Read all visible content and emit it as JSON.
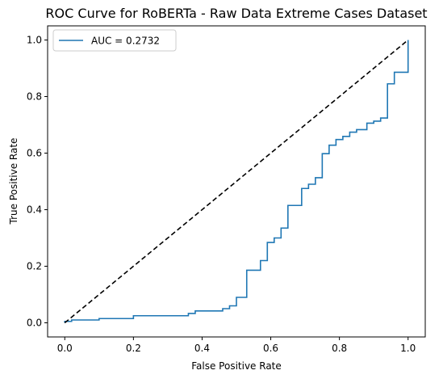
{
  "chart_data": {
    "type": "line",
    "title": "ROC Curve for RoBERTa - Raw Data Extreme Cases Dataset",
    "xlabel": "False Positive Rate",
    "ylabel": "True Positive Rate",
    "xlim": [
      -0.05,
      1.05
    ],
    "ylim": [
      -0.05,
      1.05
    ],
    "xticks": [
      0.0,
      0.2,
      0.4,
      0.6,
      0.8,
      1.0
    ],
    "xtick_labels": [
      "0.0",
      "0.2",
      "0.4",
      "0.6",
      "0.8",
      "1.0"
    ],
    "yticks": [
      0.0,
      0.2,
      0.4,
      0.6,
      0.8,
      1.0
    ],
    "ytick_labels": [
      "0.0",
      "0.2",
      "0.4",
      "0.6",
      "0.8",
      "1.0"
    ],
    "grid": false,
    "legend_position": "top-left",
    "series": [
      {
        "name": "AUC = 0.2732",
        "color": "#1f77b4",
        "style": "solid",
        "step": true,
        "x": [
          0.0,
          0.0,
          0.02,
          0.02,
          0.1,
          0.1,
          0.2,
          0.2,
          0.36,
          0.36,
          0.38,
          0.38,
          0.46,
          0.46,
          0.48,
          0.48,
          0.5,
          0.5,
          0.53,
          0.53,
          0.57,
          0.57,
          0.59,
          0.59,
          0.61,
          0.61,
          0.63,
          0.63,
          0.65,
          0.65,
          0.69,
          0.69,
          0.71,
          0.71,
          0.73,
          0.73,
          0.75,
          0.75,
          0.77,
          0.77,
          0.79,
          0.79,
          0.81,
          0.81,
          0.83,
          0.83,
          0.85,
          0.85,
          0.88,
          0.88,
          0.9,
          0.9,
          0.92,
          0.92,
          0.94,
          0.94,
          0.96,
          0.96,
          1.0,
          1.0
        ],
        "y": [
          0.0,
          0.005,
          0.005,
          0.01,
          0.01,
          0.015,
          0.015,
          0.025,
          0.025,
          0.033,
          0.033,
          0.042,
          0.042,
          0.05,
          0.05,
          0.06,
          0.06,
          0.09,
          0.09,
          0.186,
          0.186,
          0.22,
          0.22,
          0.284,
          0.284,
          0.3,
          0.3,
          0.335,
          0.335,
          0.415,
          0.415,
          0.475,
          0.475,
          0.49,
          0.49,
          0.513,
          0.513,
          0.598,
          0.598,
          0.628,
          0.628,
          0.648,
          0.648,
          0.659,
          0.659,
          0.674,
          0.674,
          0.683,
          0.683,
          0.706,
          0.706,
          0.713,
          0.713,
          0.724,
          0.724,
          0.845,
          0.845,
          0.886,
          0.886,
          1.0
        ]
      },
      {
        "name": "",
        "color": "#000000",
        "style": "dashed",
        "step": false,
        "x": [
          0.0,
          1.0
        ],
        "y": [
          0.0,
          1.0
        ]
      }
    ]
  }
}
